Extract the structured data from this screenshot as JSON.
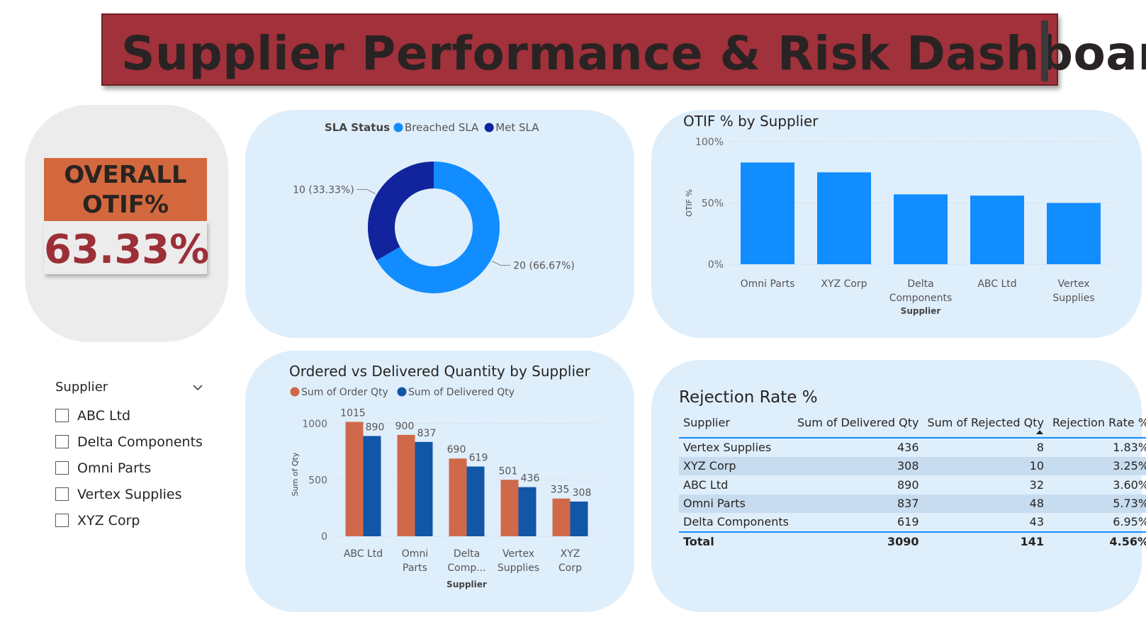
{
  "header": {
    "title": "Supplier Performance & Risk Dashboard"
  },
  "kpi": {
    "label": "OVERALL OTIF%",
    "value": "63.33%"
  },
  "slicer": {
    "title": "Supplier",
    "items": [
      {
        "label": "ABC Ltd",
        "checked": false
      },
      {
        "label": "Delta Components",
        "checked": false
      },
      {
        "label": "Omni Parts",
        "checked": false
      },
      {
        "label": "Vertex Supplies",
        "checked": false
      },
      {
        "label": "XYZ Corp",
        "checked": false
      }
    ]
  },
  "chart_data": [
    {
      "type": "pie",
      "variant": "donut",
      "legend_title": "SLA Status",
      "legend_position": "top",
      "categories": [
        "Breached SLA",
        "Met SLA"
      ],
      "values": [
        20,
        10
      ],
      "data_labels": [
        "20 (66.67%)",
        "10 (33.33%)"
      ],
      "colors": [
        "#118dff",
        "#12239e"
      ]
    },
    {
      "type": "bar",
      "title": "OTIF % by Supplier",
      "xlabel": "Supplier",
      "ylabel": "OTIF %",
      "categories": [
        "Omni Parts",
        "XYZ Corp",
        "Delta Components",
        "ABC Ltd",
        "Vertex Supplies"
      ],
      "category_labels": [
        [
          "Omni Parts"
        ],
        [
          "XYZ Corp"
        ],
        [
          "Delta",
          "Components"
        ],
        [
          "ABC Ltd"
        ],
        [
          "Vertex",
          "Supplies"
        ]
      ],
      "values": [
        83,
        75,
        57,
        56,
        50
      ],
      "ylim": [
        0,
        100
      ],
      "yticks": [
        "0%",
        "50%",
        "100%"
      ],
      "grid": true,
      "color": "#118dff"
    },
    {
      "type": "bar",
      "title": "Ordered vs Delivered Quantity by Supplier",
      "xlabel": "Supplier",
      "ylabel": "Sum of Qty",
      "legend_position": "top",
      "categories": [
        "ABC Ltd",
        "Omni Parts",
        "Delta Components",
        "Vertex Supplies",
        "XYZ Corp"
      ],
      "category_labels": [
        [
          "ABC Ltd"
        ],
        [
          "Omni",
          "Parts"
        ],
        [
          "Delta",
          "Comp..."
        ],
        [
          "Vertex",
          "Supplies"
        ],
        [
          "XYZ",
          "Corp"
        ]
      ],
      "series": [
        {
          "name": "Sum of Order Qty",
          "values": [
            1015,
            900,
            690,
            501,
            335
          ],
          "color": "#d0694a"
        },
        {
          "name": "Sum of Delivered Qty",
          "values": [
            890,
            837,
            619,
            436,
            308
          ],
          "color": "#1256a8"
        }
      ],
      "ylim": [
        0,
        1100
      ],
      "yticks": [
        "0",
        "500",
        "1000"
      ],
      "grid": true
    },
    {
      "type": "table",
      "title": "Rejection Rate %",
      "columns": [
        "Supplier",
        "Sum of Delivered Qty",
        "Sum of Rejected Qty",
        "Rejection Rate %"
      ],
      "sorted_by": "Rejection Rate %",
      "rows": [
        [
          "Vertex Supplies",
          "436",
          "8",
          "1.83%"
        ],
        [
          "XYZ Corp",
          "308",
          "10",
          "3.25%"
        ],
        [
          "ABC Ltd",
          "890",
          "32",
          "3.60%"
        ],
        [
          "Omni Parts",
          "837",
          "48",
          "5.73%"
        ],
        [
          "Delta Components",
          "619",
          "43",
          "6.95%"
        ]
      ],
      "total": [
        "Total",
        "3090",
        "141",
        "4.56%"
      ]
    }
  ]
}
